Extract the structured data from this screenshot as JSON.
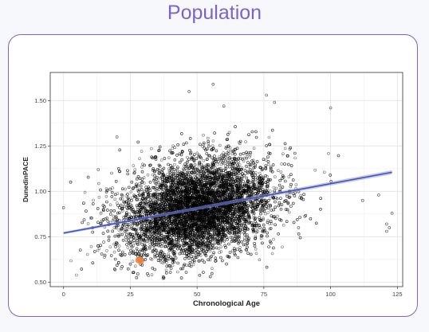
{
  "page": {
    "title": "Population"
  },
  "chart_data": {
    "type": "scatter",
    "title": "",
    "xlabel": "Chronological Age",
    "ylabel": "DunedinPACE",
    "xlim": [
      -5,
      127
    ],
    "ylim": [
      0.475,
      1.655
    ],
    "x_ticks": [
      0,
      25,
      50,
      75,
      100,
      125
    ],
    "y_ticks": [
      0.5,
      0.75,
      1.0,
      1.25,
      1.5
    ],
    "x_tick_labels": [
      "0",
      "25",
      "50",
      "75",
      "100",
      "125"
    ],
    "y_tick_labels": [
      "0.50",
      "0.75",
      "1.00",
      "1.25",
      "1.50"
    ],
    "grid": true,
    "series": [
      {
        "kind": "points",
        "color": "#000000",
        "points_description_free": true,
        "cluster": {
          "x_center": 50,
          "x_spread": 14,
          "y_center": 0.92,
          "y_spread": 0.13,
          "count": 9000
        },
        "outliers": [
          [
            0,
            0.91
          ],
          [
            13,
            1.12
          ],
          [
            14,
            0.88
          ],
          [
            15,
            0.72
          ],
          [
            18,
            1.1
          ],
          [
            20,
            1.3
          ],
          [
            22,
            0.65
          ],
          [
            47,
            1.55
          ],
          [
            56,
            1.59
          ],
          [
            60,
            1.47
          ],
          [
            76,
            1.53
          ],
          [
            79,
            1.49
          ],
          [
            88,
            0.8
          ],
          [
            100,
            1.46
          ],
          [
            112,
            0.95
          ],
          [
            118,
            0.98
          ],
          [
            121,
            0.82
          ],
          [
            122,
            0.8
          ],
          [
            123,
            0.88
          ],
          [
            121,
            0.78
          ]
        ]
      },
      {
        "kind": "line",
        "color": "#3b4fd1",
        "x": [
          0,
          123
        ],
        "y": [
          0.77,
          1.105
        ]
      },
      {
        "kind": "highlight",
        "color": "#f0813a",
        "points": [
          [
            28,
            0.62
          ],
          [
            29,
            0.615
          ],
          [
            28.5,
            0.625
          ]
        ]
      }
    ]
  }
}
